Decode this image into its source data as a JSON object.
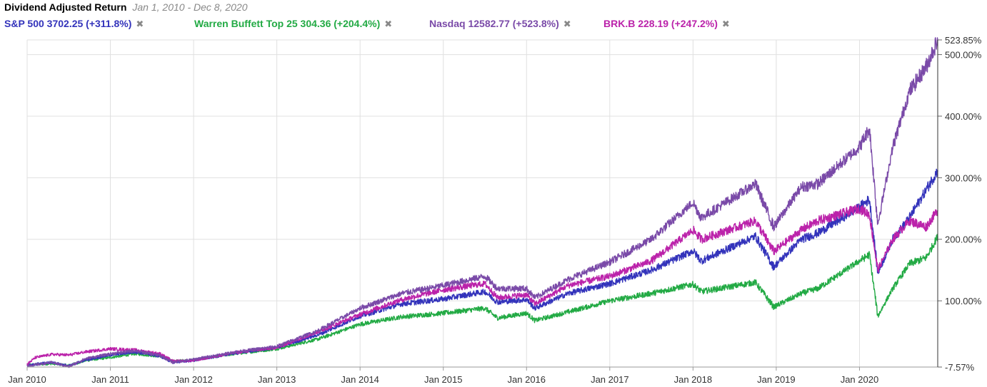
{
  "header": {
    "title": "Dividend Adjusted Return",
    "subtitle": "Jan 1, 2010 - Dec 8, 2020",
    "close_glyph": "✖"
  },
  "legend": [
    {
      "label": "S&P 500 3702.25 (+311.8%)",
      "color": "#3333bb"
    },
    {
      "label": "Warren Buffett Top 25 304.36 (+204.4%)",
      "color": "#22aa44"
    },
    {
      "label": "Nasdaq 12582.77 (+523.8%)",
      "color": "#7a4aa8"
    },
    {
      "label": "BRK.B 228.19 (+247.2%)",
      "color": "#bb22aa"
    }
  ],
  "chart_data": {
    "type": "line",
    "title": "Dividend Adjusted Return",
    "subtitle": "Jan 1, 2010 - Dec 8, 2020",
    "x_ticks": [
      "Jan 2010",
      "Jan 2011",
      "Jan 2012",
      "Jan 2013",
      "Jan 2014",
      "Jan 2015",
      "Jan 2016",
      "Jan 2017",
      "Jan 2018",
      "Jan 2019",
      "Jan 2020"
    ],
    "y_ticks": [
      "-7.57%",
      "100.00%",
      "200.00%",
      "300.00%",
      "400.00%",
      "500.00%",
      "523.85%"
    ],
    "y_range": [
      -7.57,
      523.85
    ],
    "x_range": [
      2010.0,
      2020.94
    ],
    "grid": true,
    "series": [
      {
        "name": "S&P 500",
        "final_value": 311.8,
        "color": "#3333bb",
        "x": [
          2010.0,
          2010.1,
          2010.3,
          2010.5,
          2010.7,
          2011.0,
          2011.3,
          2011.6,
          2011.75,
          2012.0,
          2012.5,
          2013.0,
          2013.5,
          2014.0,
          2014.5,
          2015.0,
          2015.5,
          2015.65,
          2016.0,
          2016.1,
          2016.5,
          2017.0,
          2017.5,
          2018.0,
          2018.1,
          2018.75,
          2018.97,
          2019.3,
          2019.5,
          2020.0,
          2020.12,
          2020.22,
          2020.4,
          2020.6,
          2020.8,
          2020.94
        ],
        "values": [
          -4,
          -3,
          0,
          -6,
          4,
          12,
          17,
          10,
          0,
          3,
          15,
          24,
          45,
          75,
          95,
          103,
          115,
          98,
          102,
          88,
          112,
          128,
          150,
          181,
          165,
          205,
          155,
          200,
          210,
          252,
          265,
          145,
          200,
          235,
          280,
          311.8
        ]
      },
      {
        "name": "Warren Buffett Top 25",
        "final_value": 204.4,
        "color": "#22aa44",
        "x": [
          2010.0,
          2010.3,
          2010.5,
          2010.7,
          2011.0,
          2011.3,
          2011.6,
          2011.75,
          2012.0,
          2012.5,
          2013.0,
          2013.5,
          2014.0,
          2014.5,
          2015.0,
          2015.5,
          2015.65,
          2016.0,
          2016.1,
          2016.5,
          2017.0,
          2017.5,
          2018.0,
          2018.1,
          2018.75,
          2018.97,
          2019.3,
          2019.5,
          2020.0,
          2020.12,
          2020.22,
          2020.4,
          2020.6,
          2020.8,
          2020.94
        ],
        "values": [
          -4,
          -2,
          -5,
          3,
          8,
          14,
          10,
          2,
          4,
          14,
          22,
          38,
          62,
          74,
          80,
          88,
          72,
          80,
          68,
          82,
          100,
          112,
          127,
          115,
          130,
          90,
          112,
          120,
          165,
          175,
          75,
          120,
          160,
          170,
          204.4
        ]
      },
      {
        "name": "Nasdaq",
        "final_value": 523.8,
        "color": "#7a4aa8",
        "x": [
          2010.0,
          2010.1,
          2010.3,
          2010.5,
          2010.7,
          2011.0,
          2011.3,
          2011.6,
          2011.75,
          2012.0,
          2012.5,
          2013.0,
          2013.5,
          2014.0,
          2014.5,
          2015.0,
          2015.5,
          2015.65,
          2016.0,
          2016.1,
          2016.5,
          2017.0,
          2017.5,
          2018.0,
          2018.1,
          2018.75,
          2018.97,
          2019.3,
          2019.5,
          2020.0,
          2020.12,
          2020.22,
          2020.4,
          2020.6,
          2020.8,
          2020.94
        ],
        "values": [
          -5,
          -4,
          0,
          -7,
          6,
          14,
          19,
          11,
          0,
          5,
          17,
          26,
          52,
          88,
          112,
          125,
          140,
          120,
          120,
          105,
          135,
          163,
          200,
          260,
          235,
          290,
          220,
          285,
          290,
          350,
          380,
          225,
          350,
          440,
          480,
          523.8
        ]
      },
      {
        "name": "BRK.B",
        "final_value": 247.2,
        "color": "#bb22aa",
        "x": [
          2010.0,
          2010.1,
          2010.3,
          2010.5,
          2010.7,
          2011.0,
          2011.3,
          2011.6,
          2011.75,
          2012.0,
          2012.5,
          2013.0,
          2013.5,
          2014.0,
          2014.5,
          2015.0,
          2015.5,
          2015.65,
          2016.0,
          2016.1,
          2016.5,
          2017.0,
          2017.5,
          2018.0,
          2018.1,
          2018.75,
          2018.97,
          2019.3,
          2019.5,
          2020.0,
          2020.12,
          2020.22,
          2020.4,
          2020.6,
          2020.8,
          2020.94
        ],
        "values": [
          -3,
          8,
          13,
          12,
          17,
          22,
          20,
          14,
          2,
          3,
          16,
          24,
          50,
          78,
          102,
          118,
          128,
          105,
          110,
          95,
          125,
          140,
          165,
          215,
          200,
          230,
          180,
          215,
          230,
          250,
          240,
          150,
          200,
          230,
          220,
          247.2
        ]
      }
    ]
  }
}
